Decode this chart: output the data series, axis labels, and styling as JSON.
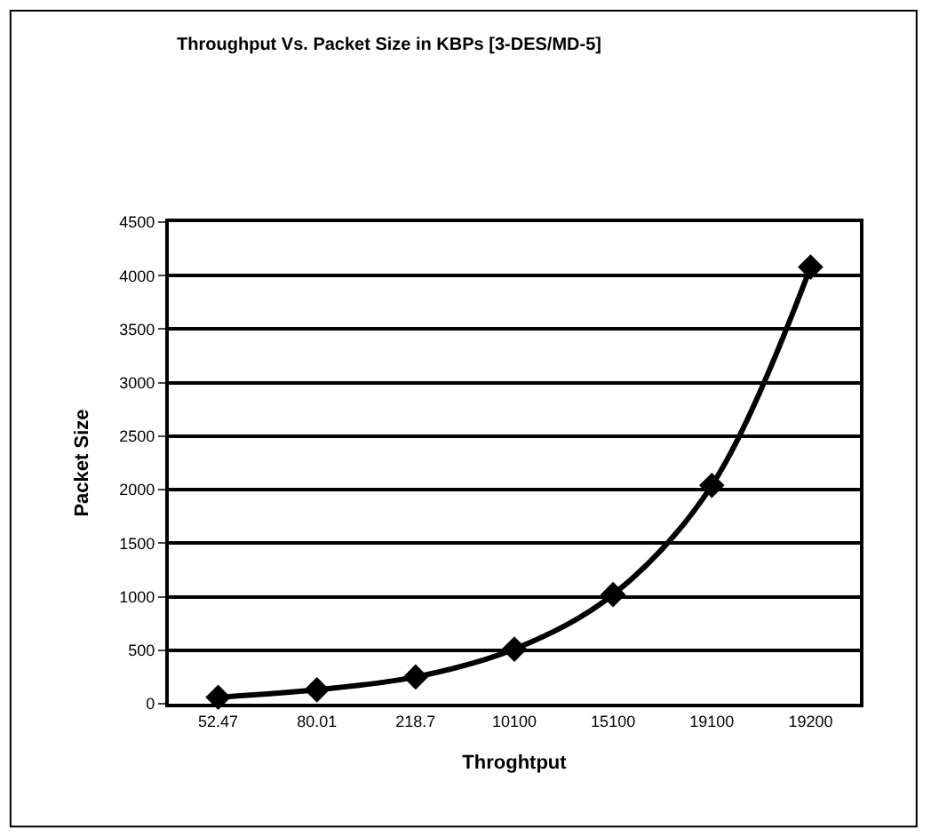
{
  "chart_data": {
    "type": "line",
    "title": "Throughput Vs. Packet Size in KBPs [3-DES/MD-5]",
    "xlabel": "Throghtput",
    "ylabel": "Packet Size",
    "categories": [
      "52.47",
      "80.01",
      "218.7",
      "10100",
      "15100",
      "19100",
      "19200"
    ],
    "series": [
      {
        "color": "#000000",
        "values": [
          60,
          130,
          250,
          510,
          1020,
          2040,
          4080
        ]
      }
    ],
    "ylim": [
      0,
      4500
    ],
    "yticks": [
      0,
      500,
      1000,
      1500,
      2000,
      2500,
      3000,
      3500,
      4000,
      4500
    ],
    "grid": "y",
    "marker": "diamond",
    "line_style": "solid"
  }
}
